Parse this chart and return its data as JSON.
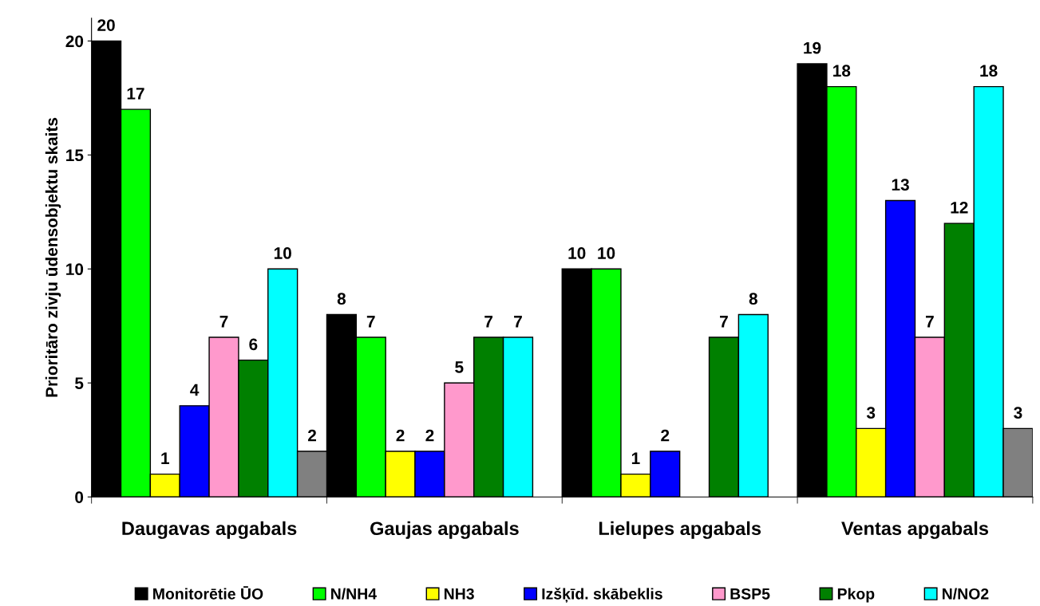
{
  "chart_data": {
    "type": "bar",
    "ylabel": "Prioritāro zivju ūdensobjektu skaits",
    "categories": [
      "Daugavas apgabals",
      "Gaujas apgabals",
      "Lielupes apgabals",
      "Ventas apgabals"
    ],
    "series": [
      {
        "name": "Monitorētie ŪO",
        "color": "#000000",
        "values": [
          20,
          8,
          10,
          19
        ]
      },
      {
        "name": "N/NH4",
        "color": "#00ff00",
        "values": [
          17,
          7,
          10,
          18
        ]
      },
      {
        "name": "NH3",
        "color": "#ffff00",
        "values": [
          1,
          2,
          1,
          3
        ]
      },
      {
        "name": "Izšķīd. skābeklis",
        "color": "#0000ff",
        "values": [
          4,
          2,
          2,
          13
        ]
      },
      {
        "name": "BSP5",
        "color": "#ff99cc",
        "values": [
          7,
          5,
          null,
          7
        ]
      },
      {
        "name": "Pkop",
        "color": "#008000",
        "values": [
          6,
          7,
          7,
          12
        ]
      },
      {
        "name": "N/NO2",
        "color": "#00ffff",
        "values": [
          10,
          7,
          8,
          18
        ]
      },
      {
        "color": "#808080",
        "values": [
          2,
          null,
          null,
          3
        ]
      }
    ],
    "ylim": [
      0,
      21
    ],
    "yticks": [
      0,
      5,
      10,
      15,
      20
    ],
    "grid": false,
    "legend": "bottom",
    "data_labels": true
  }
}
